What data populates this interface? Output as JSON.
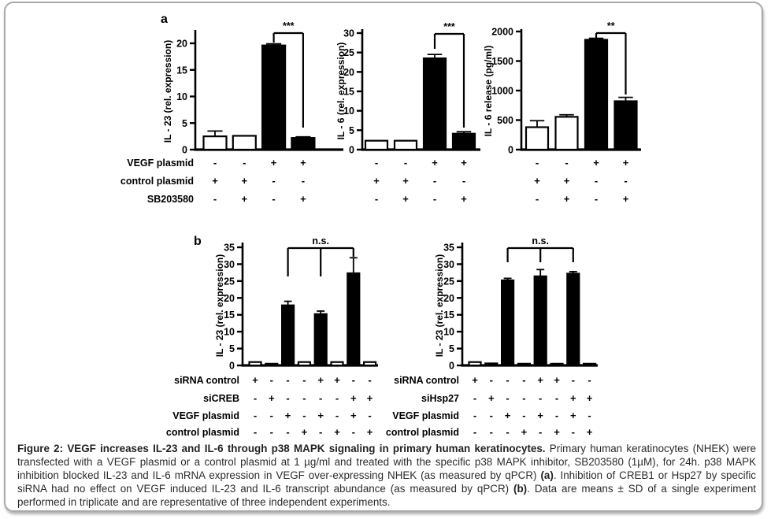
{
  "figure": {
    "panels": [
      {
        "id": "a",
        "label": "a"
      },
      {
        "id": "b",
        "label": "b"
      }
    ]
  },
  "colors": {
    "bar_black": "#000000",
    "bar_white": "#ffffff",
    "axis": "#000000",
    "frame_border": "#a9a9a9",
    "caption_text": "#2b2b2b"
  },
  "chart_data": [
    {
      "id": "a1",
      "panel": "a",
      "type": "bar",
      "ylabel": "IL - 23 (rel. expression)",
      "ylim": [
        0,
        22
      ],
      "yticks": [
        0,
        5,
        10,
        15,
        20
      ],
      "bars": [
        {
          "value": 2.5,
          "err": 1.0,
          "fill": "white"
        },
        {
          "value": 2.6,
          "err": 0,
          "fill": "white"
        },
        {
          "value": 19.6,
          "err": 0.3,
          "fill": "black"
        },
        {
          "value": 2.2,
          "err": 0.2,
          "fill": "black"
        }
      ],
      "significance": {
        "label": "***",
        "bars": [
          2,
          3
        ]
      },
      "conditions": {
        "show_labels": true,
        "labels": [
          "VEGF plasmid",
          "control plasmid",
          "SB203580"
        ],
        "rows": [
          [
            "-",
            "-",
            "+",
            "+"
          ],
          [
            "+",
            "+",
            "-",
            "-"
          ],
          [
            "-",
            "+",
            "-",
            "+"
          ]
        ]
      }
    },
    {
      "id": "a2",
      "panel": "a",
      "type": "bar",
      "ylabel": "IL - 6 (rel. expression)",
      "ylim": [
        0,
        31
      ],
      "yticks": [
        0,
        5,
        10,
        15,
        20,
        25,
        30
      ],
      "bars": [
        {
          "value": 2.3,
          "err": 0,
          "fill": "white"
        },
        {
          "value": 2.3,
          "err": 0,
          "fill": "white"
        },
        {
          "value": 23.5,
          "err": 1.0,
          "fill": "black"
        },
        {
          "value": 4.1,
          "err": 0.5,
          "fill": "black"
        }
      ],
      "significance": {
        "label": "***",
        "bars": [
          2,
          3
        ]
      },
      "conditions": {
        "show_labels": false,
        "labels": [
          "VEGF plasmid",
          "control plasmid",
          "SB203580"
        ],
        "rows": [
          [
            "-",
            "-",
            "+",
            "+"
          ],
          [
            "+",
            "+",
            "-",
            "-"
          ],
          [
            "-",
            "+",
            "-",
            "+"
          ]
        ]
      }
    },
    {
      "id": "a3",
      "panel": "a",
      "type": "bar",
      "ylabel": "IL - 6 release (pg/ml)",
      "ylim": [
        0,
        2050
      ],
      "yticks": [
        0,
        500,
        1000,
        1500,
        2000
      ],
      "bars": [
        {
          "value": 380,
          "err": 110,
          "fill": "white"
        },
        {
          "value": 555,
          "err": 35,
          "fill": "white"
        },
        {
          "value": 1860,
          "err": 25,
          "fill": "black"
        },
        {
          "value": 820,
          "err": 65,
          "fill": "black"
        }
      ],
      "significance": {
        "label": "**",
        "bars": [
          2,
          3
        ]
      },
      "conditions": {
        "show_labels": false,
        "labels": [
          "VEGF plasmid",
          "control plasmid",
          "SB203580"
        ],
        "rows": [
          [
            "-",
            "-",
            "+",
            "+"
          ],
          [
            "+",
            "+",
            "-",
            "-"
          ],
          [
            "-",
            "+",
            "-",
            "+"
          ]
        ]
      }
    },
    {
      "id": "b1",
      "panel": "b",
      "type": "bar",
      "ylabel": "IL - 23 (rel. expression)",
      "ylim": [
        0,
        36
      ],
      "yticks": [
        0,
        5,
        10,
        15,
        20,
        25,
        30,
        35
      ],
      "bars": [
        {
          "value": 1.0,
          "err": 0,
          "fill": "white"
        },
        {
          "value": 0.5,
          "err": 0,
          "fill": "black"
        },
        {
          "value": 17.8,
          "err": 1.2,
          "fill": "black"
        },
        {
          "value": 1.0,
          "err": 0,
          "fill": "white"
        },
        {
          "value": 15.2,
          "err": 0.9,
          "fill": "black"
        },
        {
          "value": 1.0,
          "err": 0,
          "fill": "white"
        },
        {
          "value": 27.3,
          "err": 4.6,
          "fill": "black"
        },
        {
          "value": 1.0,
          "err": 0,
          "fill": "white"
        }
      ],
      "significance": {
        "label": "n.s.",
        "bars": [
          2,
          4,
          6
        ]
      },
      "conditions": {
        "show_labels": true,
        "labels": [
          "siRNA control",
          "siCREB",
          "VEGF plasmid",
          "control plasmid"
        ],
        "rows": [
          [
            "+",
            "-",
            "-",
            "-",
            "+",
            "+",
            "-",
            "-"
          ],
          [
            "-",
            "+",
            "-",
            "-",
            "-",
            "-",
            "+",
            "+"
          ],
          [
            "-",
            "-",
            "+",
            "-",
            "+",
            "-",
            "+",
            "-"
          ],
          [
            "-",
            "-",
            "-",
            "+",
            "-",
            "+",
            "-",
            "+"
          ]
        ]
      }
    },
    {
      "id": "b2",
      "panel": "b",
      "type": "bar",
      "ylabel": "IL - 23 (rel. expression)",
      "ylim": [
        0,
        36
      ],
      "yticks": [
        0,
        5,
        10,
        15,
        20,
        25,
        30,
        35
      ],
      "bars": [
        {
          "value": 1.0,
          "err": 0,
          "fill": "white"
        },
        {
          "value": 0.6,
          "err": 0,
          "fill": "black"
        },
        {
          "value": 25.2,
          "err": 0.6,
          "fill": "black"
        },
        {
          "value": 0.5,
          "err": 0,
          "fill": "black"
        },
        {
          "value": 26.4,
          "err": 2.0,
          "fill": "black"
        },
        {
          "value": 0.5,
          "err": 0,
          "fill": "black"
        },
        {
          "value": 27.2,
          "err": 0.6,
          "fill": "black"
        },
        {
          "value": 0.5,
          "err": 0,
          "fill": "black"
        }
      ],
      "significance": {
        "label": "n.s.",
        "bars": [
          2,
          4,
          6
        ]
      },
      "conditions": {
        "show_labels": true,
        "labels": [
          "siRNA control",
          "siHsp27",
          "VEGF plasmid",
          "control plasmid"
        ],
        "rows": [
          [
            "+",
            "-",
            "-",
            "-",
            "+",
            "+",
            "-",
            "-"
          ],
          [
            "-",
            "+",
            "-",
            "-",
            "-",
            "-",
            "+",
            "+"
          ],
          [
            "-",
            "-",
            "+",
            "-",
            "+",
            "-",
            "+",
            "-"
          ],
          [
            "-",
            "-",
            "-",
            "+",
            "-",
            "+",
            "-",
            "+"
          ]
        ]
      }
    }
  ],
  "caption": {
    "segments": [
      {
        "text": "Figure 2: VEGF increases IL-23 and IL-6 through p38 MAPK signaling in primary human keratinocytes.",
        "bold": true
      },
      {
        "text": " Primary human keratinocytes (NHEK) were transfected with a VEGF plasmid or a control plasmid at 1 µg/ml and treated with the specific p38 MAPK inhibitor, SB203580 (1µM), for 24h. p38 MAPK inhibition blocked IL-23 and IL-6 mRNA expression in VEGF over-expressing NHEK (as measured by qPCR) ",
        "bold": false
      },
      {
        "text": "(a)",
        "bold": true
      },
      {
        "text": ". Inhibition of CREB1 or Hsp27 by specific siRNA had no effect on VEGF induced IL-23 and IL-6 transcript abundance (as measured by qPCR) ",
        "bold": false
      },
      {
        "text": "(b)",
        "bold": true
      },
      {
        "text": ". Data are means ± SD of a single experiment performed in triplicate and are representative of three independent experiments.",
        "bold": false
      }
    ]
  }
}
